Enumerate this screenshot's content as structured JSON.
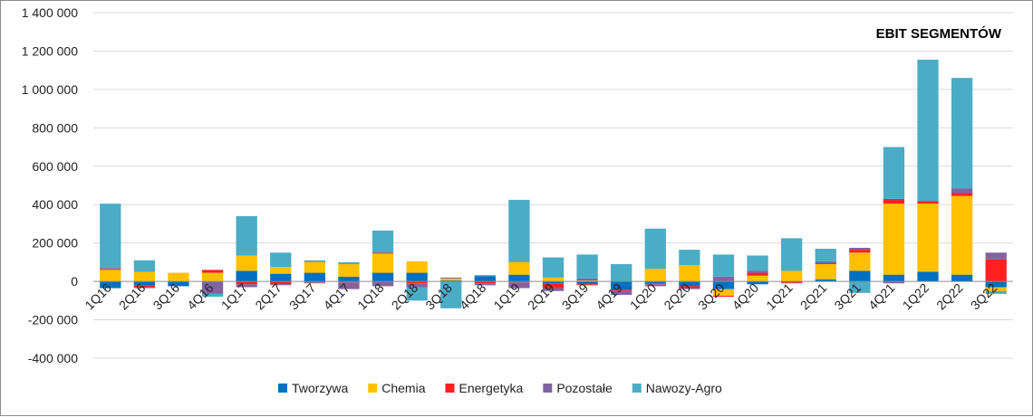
{
  "chart_data": {
    "type": "bar",
    "stacked": true,
    "title": "EBIT SEGMENTÓW",
    "xlabel": "",
    "ylabel": "",
    "ylim": [
      -400000,
      1400000
    ],
    "yticks": [
      -400000,
      -200000,
      0,
      200000,
      400000,
      600000,
      800000,
      1000000,
      1200000,
      1400000
    ],
    "ytick_labels": [
      "-400 000",
      "-200 000",
      "0",
      "200 000",
      "400 000",
      "600 000",
      "800 000",
      "1 000 000",
      "1 200 000",
      "1 400 000"
    ],
    "grid": true,
    "legend_position": "bottom",
    "categories": [
      "1Q16",
      "2Q16",
      "3Q16",
      "4Q16",
      "1Q17",
      "2Q17",
      "3Q17",
      "4Q17",
      "1Q18",
      "2Q18",
      "3Q18",
      "4Q18",
      "1Q19",
      "2Q19",
      "3Q19",
      "4Q19",
      "1Q20",
      "2Q20",
      "3Q20",
      "4Q20",
      "1Q21",
      "2Q21",
      "3Q21",
      "4Q21",
      "1Q22",
      "2Q22",
      "3Q22"
    ],
    "series": [
      {
        "name": "Tworzywa",
        "color": "#0070C0",
        "values": [
          -35000,
          -20000,
          -25000,
          0,
          55000,
          40000,
          45000,
          25000,
          45000,
          45000,
          5000,
          28000,
          35000,
          -10000,
          -15000,
          -45000,
          -10000,
          -25000,
          -40000,
          -15000,
          -5000,
          10000,
          55000,
          35000,
          50000,
          35000,
          -30000
        ]
      },
      {
        "name": "Chemia",
        "color": "#FFC000",
        "values": [
          60000,
          50000,
          45000,
          45000,
          80000,
          35000,
          55000,
          65000,
          100000,
          60000,
          10000,
          0,
          65000,
          20000,
          5000,
          0,
          65000,
          85000,
          -35000,
          30000,
          55000,
          80000,
          95000,
          370000,
          355000,
          410000,
          -20000
        ]
      },
      {
        "name": "Energetyka",
        "color": "#FF2020",
        "values": [
          5000,
          -10000,
          0,
          15000,
          -15000,
          -15000,
          -5000,
          -5000,
          5000,
          -10000,
          0,
          -10000,
          -5000,
          -25000,
          -5000,
          -5000,
          -5000,
          -10000,
          -5000,
          15000,
          -5000,
          5000,
          15000,
          25000,
          10000,
          15000,
          115000
        ]
      },
      {
        "name": "Pozostałe",
        "color": "#8064A2",
        "values": [
          5000,
          -5000,
          0,
          -65000,
          -15000,
          -5000,
          -5000,
          -35000,
          -25000,
          -20000,
          5000,
          -10000,
          -30000,
          -15000,
          10000,
          -20000,
          -10000,
          -5000,
          25000,
          10000,
          0,
          10000,
          10000,
          -10000,
          5000,
          25000,
          35000
        ]
      },
      {
        "name": "Nawozy-Agro",
        "color": "#4BACC6",
        "values": [
          335000,
          60000,
          0,
          -15000,
          205000,
          75000,
          10000,
          10000,
          115000,
          -70000,
          -140000,
          5000,
          325000,
          105000,
          125000,
          90000,
          210000,
          80000,
          115000,
          80000,
          170000,
          65000,
          -60000,
          270000,
          735000,
          575000,
          -15000
        ]
      }
    ]
  }
}
